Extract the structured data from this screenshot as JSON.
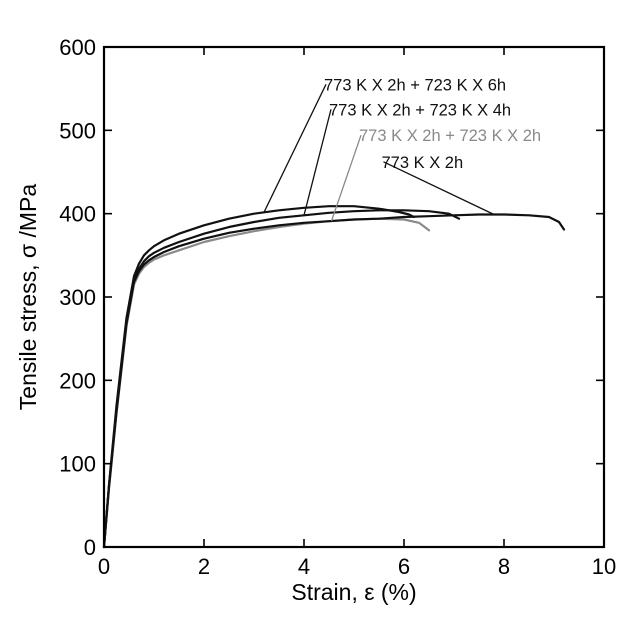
{
  "chart_data": {
    "type": "line",
    "title": "",
    "xlabel": "Strain, ε (%)",
    "ylabel": "Tensile stress, σ /MPa",
    "xlim": [
      0,
      10
    ],
    "ylim": [
      0,
      600
    ],
    "x_ticks": [
      0,
      2,
      4,
      6,
      8,
      10
    ],
    "y_ticks": [
      0,
      100,
      200,
      300,
      400,
      500,
      600
    ],
    "grid": false,
    "legend": "none",
    "series": [
      {
        "name": "773 K X 2h + 723 K X 6h",
        "color": "#111111",
        "x": [
          0,
          0.1,
          0.25,
          0.45,
          0.6,
          0.7,
          0.8,
          0.9,
          1.0,
          1.2,
          1.5,
          2.0,
          2.5,
          3.0,
          3.5,
          4.0,
          4.5,
          5.0,
          5.5,
          5.9,
          6.1,
          6.2
        ],
        "y": [
          0,
          75,
          170,
          275,
          325,
          340,
          350,
          356,
          361,
          368,
          376,
          386,
          394,
          400,
          404,
          407,
          409,
          409,
          406,
          402,
          399,
          396
        ]
      },
      {
        "name": "773 K X 2h + 723 K X 4h",
        "color": "#111111",
        "x": [
          0,
          0.1,
          0.25,
          0.45,
          0.6,
          0.7,
          0.8,
          0.9,
          1.0,
          1.2,
          1.5,
          2.0,
          2.5,
          3.0,
          3.5,
          4.0,
          4.5,
          5.0,
          5.5,
          6.0,
          6.5,
          6.9,
          7.1
        ],
        "y": [
          0,
          73,
          165,
          270,
          320,
          334,
          343,
          349,
          353,
          359,
          366,
          376,
          384,
          390,
          395,
          398,
          401,
          403,
          404,
          404,
          403,
          400,
          394
        ]
      },
      {
        "name": "773 K X 2h + 723 K X 2h",
        "color": "#8a8a8a",
        "x": [
          0,
          0.1,
          0.25,
          0.45,
          0.6,
          0.7,
          0.8,
          0.9,
          1.0,
          1.2,
          1.5,
          2.0,
          2.5,
          3.0,
          3.5,
          4.0,
          4.5,
          5.0,
          5.5,
          6.0,
          6.3,
          6.5
        ],
        "y": [
          0,
          70,
          160,
          265,
          315,
          328,
          336,
          341,
          345,
          350,
          356,
          366,
          373,
          379,
          384,
          388,
          391,
          393,
          394,
          393,
          389,
          380
        ]
      },
      {
        "name": "773 K X 2h",
        "color": "#111111",
        "x": [
          0,
          0.1,
          0.25,
          0.45,
          0.6,
          0.7,
          0.8,
          0.9,
          1.0,
          1.2,
          1.5,
          2.0,
          2.5,
          3.0,
          3.5,
          4.0,
          4.5,
          5.0,
          5.5,
          6.0,
          6.5,
          7.0,
          7.5,
          8.0,
          8.5,
          8.9,
          9.1,
          9.2
        ],
        "y": [
          0,
          72,
          162,
          268,
          318,
          331,
          339,
          344,
          348,
          354,
          361,
          370,
          377,
          382,
          386,
          389,
          391,
          393,
          394,
          396,
          397,
          398,
          399,
          399,
          398,
          396,
          390,
          381
        ]
      }
    ],
    "annotations": [
      {
        "text": "773 K X 2h + 723 K X 6h",
        "series": 0,
        "pointer_x": 3.2,
        "text_x": 4.4,
        "text_y": 548,
        "color": "#111111"
      },
      {
        "text": "773 K X 2h + 723 K X 4h",
        "series": 1,
        "pointer_x": 4.0,
        "text_x": 4.5,
        "text_y": 518,
        "color": "#111111"
      },
      {
        "text": "773 K X 2h + 723 K X 2h",
        "series": 2,
        "pointer_x": 4.55,
        "text_x": 5.1,
        "text_y": 487,
        "color": "#8a8a8a"
      },
      {
        "text": "773 K X 2h",
        "series": 3,
        "pointer_x": 7.8,
        "text_x": 5.55,
        "text_y": 455,
        "color": "#111111"
      }
    ]
  }
}
